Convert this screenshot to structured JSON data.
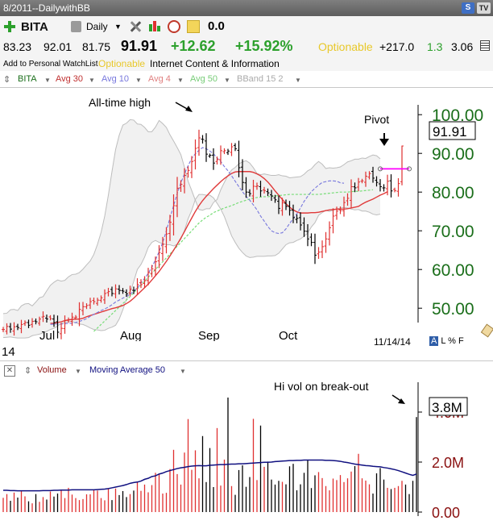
{
  "window": {
    "title": "8/2011--DailywithBB",
    "buttons": [
      "S",
      "TV"
    ]
  },
  "toolbar": {
    "symbol": "BITA",
    "period": "Daily",
    "value": "0.0",
    "icons": [
      "add-symbol-icon",
      "document-icon",
      "tools-icon",
      "candlestick-icon",
      "alarm-clock-icon",
      "note-icon"
    ]
  },
  "quote": {
    "open": "83.23",
    "high": "92.01",
    "low": "81.75",
    "last": "91.91",
    "change": "+12.62",
    "change_pct": "+15.92%",
    "optionable": "Optionable",
    "v1": "+217.0",
    "v2": "1.3",
    "v3": "3.06",
    "watchlist": "Add to Personal WatchList",
    "optionable_label": "Optionable",
    "industry": "Internet Content & Information"
  },
  "colors": {
    "bar_up": "#e03030",
    "bar_down": "#000000",
    "avg30": "#e03a3a",
    "avg10": "#7777dd",
    "avg50": "#77dd77",
    "bband": "#bdbdbd",
    "axis_green": "#1a6e1a",
    "axis_red": "#8a1010",
    "vol_ma": "#101080",
    "pivot": "#ff00ff",
    "change_green": "#2ca02c",
    "optionable_yellow": "#e8c82a"
  },
  "indicators": {
    "symbol": "BITA",
    "avg30": "Avg 30",
    "avg10": "Avg 10",
    "avg4": "Avg 4",
    "avg50": "Avg 50",
    "bband": "BBand 15 2"
  },
  "price_panel": {
    "annotations": {
      "all_time_high": "All-time high",
      "pivot": "Pivot"
    },
    "last_label": "91.91",
    "y_ticks": [
      "100.00",
      "90.00",
      "80.00",
      "70.00",
      "60.00",
      "50.00"
    ],
    "x_ticks": [
      "Jul",
      "Aug",
      "Sep",
      "Oct"
    ],
    "date": "11/14/14",
    "left_label": "14",
    "scale_controls": "A L % F"
  },
  "volume_panel": {
    "legend": {
      "volume": "Volume",
      "ma": "Moving Average 50"
    },
    "annotation": "Hi vol on break-out",
    "last_label": "3.8M",
    "y_ticks": [
      "4.0M",
      "2.0M",
      "0.00"
    ]
  },
  "chart_data": [
    {
      "type": "ohlc",
      "title": "",
      "symbol": "BITA",
      "x_ticks": [
        "Jul",
        "Aug",
        "Sep",
        "Oct"
      ],
      "ylim": [
        42,
        104
      ],
      "y_ticks": [
        100,
        90,
        80,
        70,
        60,
        50
      ],
      "last": 91.91,
      "closes": [
        44.5,
        45.3,
        44.6,
        45.2,
        45.0,
        45.8,
        46.3,
        45.6,
        46.6,
        46.5,
        47.2,
        47.9,
        47.2,
        47.3,
        46.3,
        43.8,
        44.8,
        46.8,
        47.0,
        47.7,
        47.7,
        49.7,
        50.4,
        50.7,
        51.7,
        51.7,
        52.1,
        52.7,
        53.8,
        54.3,
        53.8,
        55.0,
        54.6,
        54.4,
        53.7,
        54.9,
        54.6,
        56.1,
        56.1,
        57.1,
        59.2,
        60.2,
        62.0,
        64.4,
        66.5,
        69.2,
        72.2,
        76.5,
        81.0,
        82.0,
        84.3,
        85.6,
        87.9,
        91.3,
        94.0,
        93.6,
        89.8,
        89.5,
        87.5,
        88.4,
        90.7,
        90.7,
        90.6,
        91.7,
        91.2,
        86.3,
        82.5,
        80.0,
        79.6,
        81.5,
        81.6,
        80.3,
        80.4,
        79.8,
        79.0,
        78.0,
        75.8,
        77.2,
        76.3,
        75.3,
        73.4,
        73.2,
        71.5,
        69.9,
        67.9,
        67.0,
        63.7,
        64.5,
        65.9,
        67.9,
        70.8,
        73.8,
        75.1,
        75.2,
        77.3,
        78.4,
        81.4,
        81.1,
        82.6,
        82.9,
        84.1,
        84.8,
        83.6,
        82.5,
        81.4,
        81.1,
        82.8,
        80.3,
        80.4,
        82.2,
        91.91
      ],
      "series": [
        {
          "name": "Avg 30",
          "start_index": 13,
          "values": [
            46.1,
            46.1,
            46.3,
            46.5,
            46.8,
            47.0,
            47.1,
            47.2,
            47.2,
            47.4,
            47.8,
            48.1,
            48.4,
            48.7,
            49.0,
            49.3,
            49.6,
            49.9,
            50.1,
            50.4,
            50.7,
            51.2,
            51.8,
            52.6,
            53.5,
            54.4,
            55.3,
            56.2,
            57.3,
            58.4,
            59.5,
            60.8,
            62.1,
            63.5,
            65.0,
            66.5,
            68.1,
            69.8,
            71.6,
            73.3,
            75.0,
            76.5,
            77.8,
            78.9,
            79.9,
            80.9,
            81.8,
            82.7,
            83.5,
            84.2,
            84.8,
            85.2,
            85.3,
            85.3,
            85.3,
            85.3,
            85.1,
            84.7,
            84.2,
            83.5,
            82.6,
            81.5,
            80.3,
            79.2,
            78.1,
            77.0,
            76.1,
            75.4,
            74.9,
            74.6,
            74.6,
            74.6,
            74.7,
            74.7,
            74.8,
            75.0,
            75.2,
            75.4,
            75.5,
            75.6,
            75.6,
            75.6,
            75.7,
            75.9,
            76.1,
            76.3,
            76.9,
            77.4,
            77.8,
            78.2,
            78.7,
            79.2,
            79.6,
            80.1
          ]
        },
        {
          "name": "Avg 10",
          "start_index": 13,
          "values": [
            45.8,
            45.9,
            45.9,
            45.9,
            46.0,
            46.1,
            46.1,
            46.3,
            46.6,
            46.9,
            47.3,
            47.9,
            48.4,
            48.9,
            49.4,
            49.8,
            50.3,
            50.9,
            51.6,
            52.1,
            52.6,
            53.1,
            53.6,
            54.4,
            55.2,
            56.5,
            57.7,
            59.0,
            60.6,
            62.5,
            64.6,
            67.0,
            70.0,
            73.3,
            76.5,
            79.6,
            82.4,
            84.7,
            86.8,
            88.7,
            89.9,
            90.8,
            91.5,
            91.2,
            90.6,
            89.9,
            88.8,
            87.9,
            86.6,
            85.5,
            84.2,
            82.8,
            81.4,
            80.1,
            78.9,
            77.9,
            76.7,
            75.4,
            73.8,
            72.5,
            71.1,
            70.0,
            69.5,
            69.3,
            69.5,
            70.5,
            71.9,
            73.1,
            74.4,
            75.9,
            77.6,
            78.9,
            80.1,
            81.0,
            81.8,
            82.5,
            82.7,
            82.9,
            82.9,
            82.8,
            82.4,
            82.3
          ]
        },
        {
          "name": "Avg 50",
          "start_index": 25,
          "values": [
            44.0,
            44.9,
            45.8,
            46.7,
            47.6,
            48.5,
            49.4,
            50.3,
            51.2,
            52.1,
            53.0,
            54.0,
            55.0,
            56.0,
            57.0,
            58.0,
            59.0,
            60.0,
            61.0,
            62.0,
            63.0,
            64.0,
            65.0,
            66.0,
            67.0,
            68.0,
            69.0,
            70.0,
            71.0,
            72.0,
            72.8,
            73.5,
            74.0,
            74.7,
            75.1,
            75.5,
            75.9,
            76.2,
            76.5,
            76.9,
            77.3,
            77.6,
            77.9,
            78.2,
            78.4,
            78.6,
            78.7,
            78.8,
            78.8,
            78.9,
            79.0,
            79.1,
            79.2,
            79.3,
            79.4,
            79.4,
            79.4,
            79.4,
            79.4,
            79.4,
            79.4,
            79.4,
            79.4,
            79.5,
            79.6,
            79.7,
            79.8,
            79.9,
            80.0,
            80.0,
            80.0,
            80.1,
            80.2,
            80.2,
            80.3,
            80.4,
            80.5,
            80.6
          ]
        },
        {
          "name": "BBand 15 2 Upper",
          "start_index": 0,
          "values": [
            48.6,
            48.7,
            49.6,
            49.7,
            49.4,
            50.6,
            51.1,
            51.2,
            50.6,
            51.6,
            52.7,
            53.0,
            54.5,
            55.9,
            56.7,
            57.3,
            57.0,
            57.2,
            58.1,
            58.7,
            58.8,
            59.2,
            60.1,
            61.2,
            62.2,
            63.9,
            66.5,
            69.6,
            73.8,
            79.2,
            85.3,
            91.0,
            94.7,
            97.3,
            97.8,
            98.7,
            98.6,
            97.6,
            97.5,
            96.7,
            95.6,
            95.6,
            96.8,
            98.5,
            97.7,
            96.7,
            94.8,
            93.2,
            91.5,
            89.7,
            86.4,
            82.8,
            80.4,
            77.9,
            75.5,
            75.3,
            75.7,
            75.7,
            77.3,
            78.1,
            80.6,
            82.5,
            84.3,
            85.7,
            86.4,
            87.3,
            87.8,
            88.1,
            87.5,
            86.3,
            84.8,
            84.5,
            84.7,
            84.5,
            84.3,
            84.3,
            84.5,
            84.2,
            84.1,
            83.7,
            83.8,
            83.9,
            84.0,
            84.6,
            85.5,
            86.0,
            87.1,
            87.9,
            87.2,
            86.1,
            86.3,
            86.2,
            86.3,
            86.5,
            87.1,
            87.8,
            88.1,
            88.5,
            88.5,
            88.8,
            88.7,
            89.2,
            89.6,
            89.4,
            88.6
          ]
        },
        {
          "name": "BBand 15 2 Lower",
          "start_index": 0,
          "values": [
            42.4,
            42.5,
            42.6,
            42.4,
            42.3,
            42.3,
            42.3,
            42.4,
            42.9,
            43.1,
            43.3,
            43.6,
            44.0,
            44.5,
            44.8,
            45.4,
            46.1,
            46.3,
            46.5,
            46.6,
            46.2,
            45.9,
            45.8,
            45.4,
            44.9,
            44.5,
            44.4,
            44.2,
            44.3,
            44.8,
            45.1,
            45.6,
            47.2,
            49.6,
            52.3,
            54.0,
            56.9,
            60.0,
            61.3,
            63.2,
            65.7,
            67.0,
            67.5,
            67.0,
            66.7,
            66.4,
            66.4,
            66.1,
            66.5,
            67.8,
            70.1,
            73.1,
            75.3,
            78.1,
            79.4,
            79.4,
            79.2,
            79.2,
            78.5,
            77.1,
            75.6,
            73.7,
            71.2,
            68.7,
            67.0,
            65.5,
            64.4,
            63.5,
            63.1,
            63.2,
            63.4,
            63.4,
            63.4,
            63.5,
            63.5,
            63.6,
            64.2,
            65.3,
            66.4,
            66.9,
            67.0,
            67.5,
            67.9,
            68.6,
            69.4,
            71.0,
            72.1,
            74.0,
            74.7,
            75.3,
            75.0,
            75.3,
            75.6,
            75.9,
            76.0,
            75.9,
            75.6,
            75.4,
            75.5,
            75.1,
            75.1,
            74.8,
            74.3,
            74.1,
            74.3
          ]
        }
      ],
      "pivot": 86.0,
      "annotations": [
        "All-time high",
        "Pivot"
      ]
    },
    {
      "type": "bar",
      "title": "",
      "ylim": [
        0,
        4.8
      ],
      "y_ticks": [
        "4.0M",
        "2.0M",
        "0.00"
      ],
      "units": "millions",
      "last": 3.8,
      "values": [
        0.57,
        0.72,
        0.45,
        0.78,
        0.58,
        0.84,
        0.63,
        0.43,
        0.35,
        0.72,
        0.41,
        0.6,
        0.5,
        0.82,
        0.62,
        0.74,
        0.89,
        0.56,
        0.97,
        0.7,
        0.56,
        0.48,
        0.52,
        0.71,
        0.71,
        0.9,
        0.86,
        0.56,
        0.47,
        0.94,
        0.48,
        0.94,
        0.68,
        0.84,
        0.6,
        0.72,
        0.86,
        1.21,
        0.85,
        1.1,
        0.79,
        1.08,
        1.57,
        1.51,
        0.74,
        0.77,
        1.72,
        2.49,
        1.52,
        1.1,
        2.38,
        3.72,
        1.69,
        2.47,
        1.35,
        3.04,
        1.2,
        2.56,
        1.0,
        3.36,
        1.06,
        2.1,
        4.58,
        1.04,
        0.69,
        1.68,
        1.87,
        1.01,
        1.4,
        3.73,
        1.28,
        3.46,
        1.81,
        2.02,
        1.3,
        1.1,
        1.25,
        1.21,
        1.11,
        1.83,
        1.93,
        0.87,
        1.11,
        1.57,
        2.08,
        0.96,
        1.47,
        1.6,
        1.36,
        1.04,
        0.87,
        1.34,
        1.28,
        1.48,
        1.2,
        1.35,
        1.62,
        1.84,
        2.33,
        1.35,
        1.26,
        1.11,
        0.74,
        1.55,
        1.76,
        1.3,
        0.97,
        0.92,
        0.97,
        1.04,
        1.25,
        1.1,
        0.72,
        1.25,
        3.8
      ],
      "series": [
        {
          "name": "Moving Average 50",
          "start_index": 0,
          "values": [
            0.87,
            0.87,
            0.86,
            0.86,
            0.85,
            0.85,
            0.85,
            0.85,
            0.85,
            0.85,
            0.85,
            0.86,
            0.86,
            0.86,
            0.87,
            0.87,
            0.88,
            0.88,
            0.88,
            0.89,
            0.89,
            0.89,
            0.89,
            0.89,
            0.89,
            0.89,
            0.9,
            0.91,
            0.92,
            0.94,
            0.97,
            1.0,
            1.03,
            1.06,
            1.1,
            1.15,
            1.18,
            1.2,
            1.24,
            1.31,
            1.35,
            1.42,
            1.45,
            1.52,
            1.56,
            1.62,
            1.66,
            1.7,
            1.74,
            1.77,
            1.79,
            1.82,
            1.84,
            1.85,
            1.86,
            1.85,
            1.85,
            1.87,
            1.88,
            1.89,
            1.9,
            1.9,
            1.91,
            1.92,
            1.92,
            1.93,
            1.93,
            1.94,
            1.95,
            1.96,
            1.97,
            1.98,
            1.99,
            1.99,
            2.0,
            2.02,
            2.03,
            2.04,
            2.05,
            2.06,
            2.06,
            2.07,
            2.07,
            2.08,
            2.08,
            2.08,
            2.08,
            2.08,
            2.08,
            2.07,
            2.07,
            2.06,
            2.05,
            2.03,
            2.0,
            1.98,
            1.95,
            1.92,
            1.9,
            1.88,
            1.86,
            1.85,
            1.83,
            1.82,
            1.81,
            1.78,
            1.76,
            1.73,
            1.7,
            1.66,
            1.61,
            1.56,
            1.51,
            1.47,
            1.52
          ]
        }
      ],
      "annotation": "Hi vol on break-out"
    }
  ]
}
